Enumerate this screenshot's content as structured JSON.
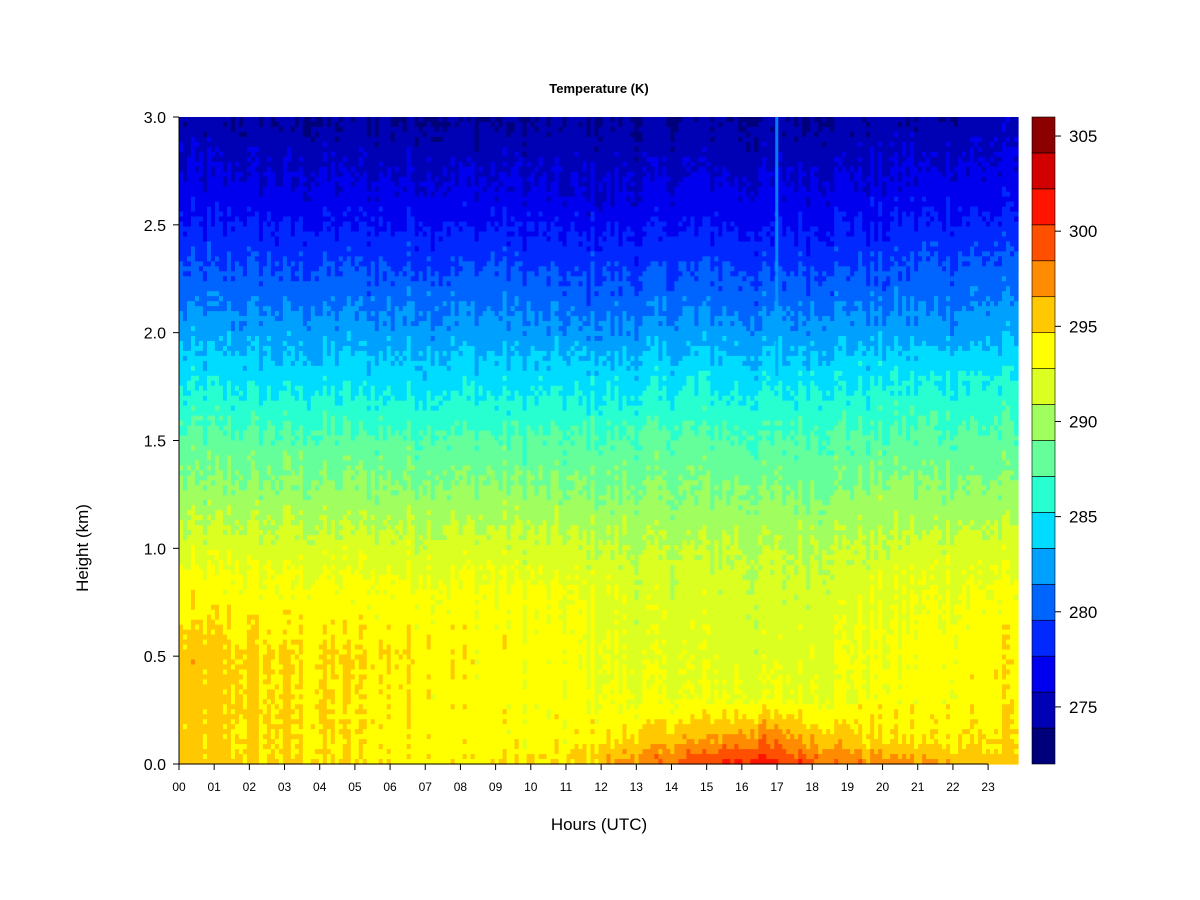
{
  "chart_data": {
    "type": "heatmap",
    "title": "Temperature (K)",
    "xlabel": "Hours (UTC)",
    "ylabel": "Height (km)",
    "x_ticks": [
      "00",
      "01",
      "02",
      "03",
      "04",
      "05",
      "06",
      "07",
      "08",
      "09",
      "10",
      "11",
      "12",
      "13",
      "14",
      "15",
      "16",
      "17",
      "18",
      "19",
      "20",
      "21",
      "22",
      "23"
    ],
    "xlim": [
      0,
      23.85
    ],
    "y_ticks": [
      "0.0",
      "0.5",
      "1.0",
      "1.5",
      "2.0",
      "2.5",
      "3.0"
    ],
    "ylim": [
      0.0,
      3.0
    ],
    "colorbar": {
      "min": 272,
      "max": 306,
      "step": 2,
      "tick_values": [
        275,
        280,
        285,
        290,
        295,
        300,
        305
      ],
      "tick_labels": [
        "275",
        "280",
        "285",
        "290",
        "295",
        "300",
        "305"
      ],
      "colors": [
        "#00007a",
        "#0000b4",
        "#0000ee",
        "#0028ff",
        "#0064ff",
        "#00a0ff",
        "#00dcff",
        "#28ffd0",
        "#64ff9a",
        "#a0ff5e",
        "#dcff22",
        "#ffff00",
        "#ffc800",
        "#ff8c00",
        "#ff5000",
        "#ff1400",
        "#d20000",
        "#8c0000"
      ]
    },
    "temperature_profile": {
      "heights_km": [
        0.0,
        0.1,
        0.3,
        0.5,
        0.8,
        1.0,
        1.2,
        1.5,
        1.8,
        2.0,
        2.3,
        2.6,
        3.0
      ],
      "hours": [
        0,
        3,
        6,
        9,
        11,
        13,
        15,
        16.5,
        18,
        20,
        22,
        23.85
      ],
      "values_K": [
        [
          297.5,
          296.0,
          295.5,
          295.5,
          296.0,
          299.0,
          301.5,
          303.0,
          301.0,
          299.0,
          297.5,
          297.0
        ],
        [
          296.5,
          296.0,
          295.5,
          295.0,
          295.0,
          296.5,
          298.5,
          300.0,
          298.0,
          296.0,
          296.0,
          296.0
        ],
        [
          297.0,
          296.0,
          295.5,
          295.0,
          294.5,
          294.0,
          294.0,
          294.0,
          294.0,
          294.5,
          295.0,
          295.5
        ],
        [
          297.0,
          296.0,
          296.0,
          295.0,
          294.5,
          293.5,
          293.5,
          293.0,
          293.5,
          294.5,
          295.0,
          295.5
        ],
        [
          295.0,
          294.5,
          294.5,
          294.5,
          294.0,
          293.0,
          293.0,
          292.5,
          293.0,
          293.5,
          294.0,
          294.5
        ],
        [
          293.0,
          293.0,
          293.0,
          293.0,
          292.5,
          292.0,
          292.0,
          292.0,
          292.0,
          292.5,
          293.0,
          293.0
        ],
        [
          291.0,
          291.0,
          291.0,
          291.0,
          290.5,
          290.5,
          290.5,
          290.5,
          290.5,
          291.0,
          291.0,
          291.0
        ],
        [
          288.5,
          288.5,
          288.5,
          288.5,
          288.0,
          288.5,
          288.5,
          288.0,
          288.5,
          288.5,
          288.5,
          288.5
        ],
        [
          285.5,
          285.0,
          285.0,
          285.0,
          285.0,
          285.0,
          285.5,
          285.0,
          285.5,
          285.5,
          286.0,
          286.0
        ],
        [
          283.0,
          283.0,
          283.0,
          283.0,
          282.5,
          282.5,
          283.0,
          282.5,
          283.0,
          283.0,
          283.0,
          283.5
        ],
        [
          280.0,
          280.0,
          280.0,
          280.0,
          279.5,
          279.5,
          280.0,
          279.5,
          280.0,
          280.0,
          280.5,
          280.5
        ],
        [
          277.0,
          277.0,
          277.0,
          277.0,
          276.5,
          276.5,
          277.0,
          276.5,
          277.0,
          277.0,
          277.5,
          277.5
        ],
        [
          274.5,
          274.0,
          274.0,
          274.0,
          274.0,
          274.0,
          274.0,
          274.0,
          274.0,
          274.5,
          274.5,
          275.0
        ]
      ]
    },
    "grid": false,
    "legend_placement": "right colorbar"
  }
}
